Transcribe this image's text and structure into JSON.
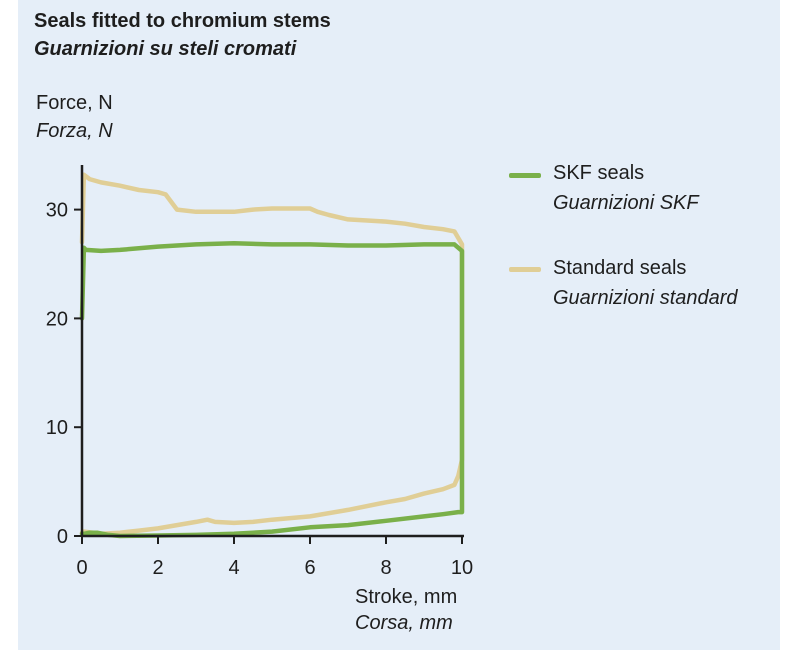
{
  "chart_data": {
    "type": "line",
    "title": "Seals fitted to chromium stems",
    "subtitle": "Guarnizioni su steli cromati",
    "ylabel": "Force, N",
    "ylabel_it": "Forza, N",
    "xlabel": "Stroke, mm",
    "xlabel_it": "Corsa, mm",
    "xlim": [
      0,
      10
    ],
    "ylim": [
      0,
      35
    ],
    "xticks": [
      0,
      2,
      4,
      6,
      8,
      10
    ],
    "yticks": [
      0,
      10,
      20,
      30
    ],
    "grid": false,
    "legend_position": "right",
    "series": [
      {
        "name": "SKF seals",
        "name_it": "Guarnizioni SKF",
        "color": "#7ab04a",
        "x": [
          0,
          0.05,
          0.1,
          0.5,
          1,
          2,
          3,
          4,
          5,
          6,
          7,
          8,
          9,
          9.8,
          10,
          10,
          10,
          9.9,
          9.5,
          9,
          8,
          7,
          6,
          5,
          4,
          3,
          2,
          1,
          0.7,
          0.4,
          0.2,
          0.05,
          0
        ],
        "y": [
          20,
          26.5,
          26.3,
          26.2,
          26.3,
          26.6,
          26.8,
          26.9,
          26.8,
          26.8,
          26.7,
          26.7,
          26.8,
          26.8,
          26.2,
          15,
          2.2,
          2.2,
          2.0,
          1.8,
          1.4,
          1.0,
          0.8,
          0.4,
          0.2,
          0.1,
          0.05,
          0.0,
          0.1,
          0.3,
          0.3,
          0.2,
          0.2
        ],
        "line_width": 4.5
      },
      {
        "name": "Standard seals",
        "name_it": "Guarnizioni standard",
        "color": "#e0ce96",
        "x": [
          0,
          0.05,
          0.2,
          0.5,
          1,
          1.5,
          2,
          2.2,
          2.5,
          3,
          4,
          4.5,
          5,
          6,
          6.2,
          6.5,
          7,
          8,
          8.5,
          9,
          9.5,
          9.8,
          10,
          10,
          9.9,
          9.8,
          9.5,
          9,
          8.5,
          8,
          7,
          6,
          5,
          4.5,
          4,
          3.5,
          3.3,
          3,
          2.5,
          2,
          1.5,
          1,
          0.5,
          0.3,
          0.05,
          0
        ],
        "y": [
          27,
          33.2,
          32.8,
          32.5,
          32.2,
          31.8,
          31.6,
          31.4,
          30.0,
          29.8,
          29.8,
          30.0,
          30.1,
          30.1,
          29.8,
          29.5,
          29.1,
          28.9,
          28.7,
          28.4,
          28.2,
          28.0,
          26.8,
          7,
          5.5,
          4.7,
          4.3,
          3.9,
          3.4,
          3.1,
          2.4,
          1.8,
          1.5,
          1.3,
          1.2,
          1.3,
          1.5,
          1.3,
          1.0,
          0.7,
          0.5,
          0.3,
          0.2,
          0.3,
          0.4,
          0.3
        ],
        "line_width": 4.5
      }
    ]
  }
}
